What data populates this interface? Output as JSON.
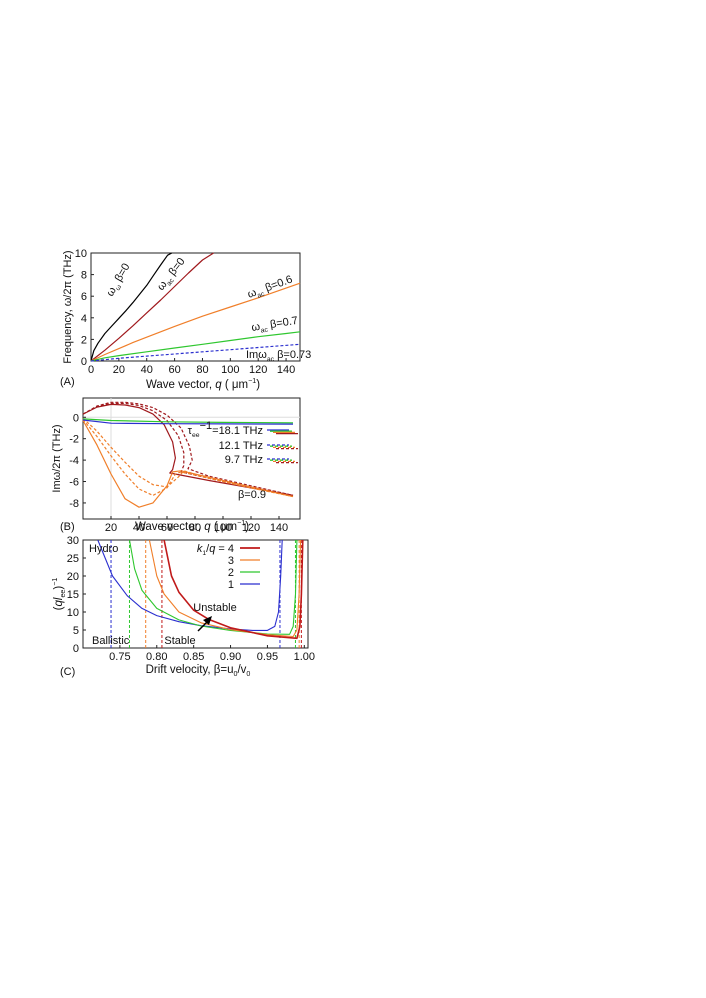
{
  "chart_data": [
    {
      "panel": "(A)",
      "type": "line",
      "xlabel": "Wave vector, q (μm⁻¹)",
      "ylabel": "Frequency, ω/2π (THz)",
      "xlim": [
        0,
        150
      ],
      "ylim": [
        0,
        10
      ],
      "xticks": [
        0,
        20,
        40,
        60,
        80,
        100,
        120,
        140
      ],
      "yticks": [
        0,
        2,
        4,
        6,
        8,
        10
      ],
      "series": [
        {
          "label": "ω_ω β=0",
          "color": "#000000",
          "dash": false,
          "x": [
            0,
            2,
            5,
            10,
            15,
            20,
            25,
            30,
            35,
            40,
            45,
            50,
            55,
            58
          ],
          "y": [
            0,
            0.95,
            1.65,
            2.55,
            3.25,
            3.95,
            4.65,
            5.4,
            6.2,
            7.0,
            7.95,
            8.9,
            9.8,
            10
          ]
        },
        {
          "label": "ω_ac β=0",
          "color": "#a0191d",
          "dash": false,
          "x": [
            0,
            10,
            20,
            30,
            40,
            50,
            60,
            70,
            80,
            88
          ],
          "y": [
            0,
            1.0,
            2.1,
            3.25,
            4.45,
            5.65,
            6.9,
            8.15,
            9.35,
            10
          ]
        },
        {
          "label": "ω_ac β=0.6",
          "color": "#f07f2a",
          "dash": false,
          "x": [
            0,
            10,
            20,
            30,
            40,
            60,
            80,
            100,
            120,
            140,
            150
          ],
          "y": [
            0,
            0.6,
            1.15,
            1.7,
            2.2,
            3.2,
            4.15,
            5.0,
            5.85,
            6.75,
            7.2
          ]
        },
        {
          "label": "ω_ac β=0.7",
          "color": "#2fc72f",
          "dash": false,
          "x": [
            0,
            10,
            20,
            40,
            60,
            80,
            100,
            120,
            140,
            150
          ],
          "y": [
            0,
            0.3,
            0.5,
            0.85,
            1.2,
            1.55,
            1.9,
            2.25,
            2.55,
            2.7
          ]
        },
        {
          "label": "Imω_ac β=0.73",
          "color": "#2b2fcf",
          "dash": true,
          "x": [
            0,
            20,
            40,
            60,
            80,
            100,
            120,
            150
          ],
          "y": [
            0,
            0.25,
            0.45,
            0.65,
            0.85,
            1.05,
            1.25,
            1.55
          ]
        }
      ],
      "annotations": [
        "ω_ω β=0",
        "ω_ac β=0",
        "ω_ac β=0.6",
        "ω_ac β=0.7",
        "Imω_ac β=0.73"
      ]
    },
    {
      "panel": "(B)",
      "type": "line",
      "xlabel": "Wave vector, q (μm⁻¹)",
      "ylabel": "Imω/2π (THz)",
      "xlim": [
        0,
        155
      ],
      "ylim": [
        -9.5,
        1.8
      ],
      "xticks": [
        20,
        40,
        60,
        80,
        100,
        120,
        140
      ],
      "yticks": [
        0,
        -2,
        -4,
        -6,
        -8
      ],
      "legend": [
        {
          "text": "τ_ee⁻¹=18.1 THz",
          "colors": [
            "#2b2fcf",
            "#2fc72f",
            "#f07f2a",
            "#a0191d"
          ],
          "dash": false
        },
        {
          "text": "12.1 THz",
          "colors": [
            "#2b2fcf",
            "#2fc72f",
            "#f07f2a",
            "#a0191d"
          ],
          "dash": true
        },
        {
          "text": "9.7 THz",
          "colors": [
            "#2b2fcf",
            "#2fc72f",
            "#f07f2a",
            "#a0191d"
          ],
          "dash": true
        }
      ],
      "annotation": "β=0.9",
      "series": [
        {
          "color": "#a0191d",
          "dash": false,
          "x": [
            0,
            10,
            20,
            30,
            40,
            50,
            58,
            64,
            66,
            64,
            62,
            70,
            90,
            120,
            150
          ],
          "y": [
            0.3,
            0.95,
            1.2,
            1.15,
            0.9,
            0.3,
            -0.7,
            -2.3,
            -3.8,
            -4.9,
            -5.2,
            -5.4,
            -5.9,
            -6.6,
            -7.3
          ]
        },
        {
          "color": "#a0191d",
          "dash": true,
          "x": [
            0,
            10,
            20,
            30,
            40,
            50,
            60,
            68,
            72,
            72,
            70,
            90,
            120,
            150
          ],
          "y": [
            0.3,
            1.0,
            1.3,
            1.3,
            1.1,
            0.6,
            -0.3,
            -1.7,
            -3.3,
            -4.5,
            -5.1,
            -5.7,
            -6.5,
            -7.3
          ]
        },
        {
          "color": "#a0191d",
          "dash": true,
          "x": [
            0,
            10,
            20,
            30,
            40,
            50,
            60,
            70,
            76,
            78,
            75,
            90,
            120,
            150
          ],
          "y": [
            0.3,
            1.05,
            1.4,
            1.4,
            1.25,
            0.9,
            0.2,
            -1.0,
            -2.7,
            -4.0,
            -4.8,
            -5.5,
            -6.4,
            -7.3
          ]
        },
        {
          "color": "#f07f2a",
          "dash": false,
          "x": [
            0,
            10,
            20,
            30,
            40,
            50,
            60,
            64,
            70,
            90,
            120,
            150
          ],
          "y": [
            -0.3,
            -2.6,
            -5.3,
            -7.6,
            -8.4,
            -8.0,
            -6.4,
            -5.1,
            -5.0,
            -5.6,
            -6.5,
            -7.4
          ]
        },
        {
          "color": "#f07f2a",
          "dash": true,
          "x": [
            0,
            10,
            20,
            30,
            40,
            50,
            60,
            66,
            70,
            90,
            120,
            150
          ],
          "y": [
            -0.2,
            -1.8,
            -3.6,
            -5.3,
            -6.7,
            -7.3,
            -6.6,
            -5.3,
            -5.1,
            -5.7,
            -6.6,
            -7.4
          ]
        },
        {
          "color": "#f07f2a",
          "dash": true,
          "x": [
            0,
            10,
            20,
            30,
            40,
            50,
            60,
            68,
            72,
            90,
            120,
            150
          ],
          "y": [
            -0.1,
            -1.3,
            -2.8,
            -4.2,
            -5.5,
            -6.3,
            -6.5,
            -5.6,
            -5.0,
            -5.7,
            -6.6,
            -7.4
          ]
        },
        {
          "color": "#2fc72f",
          "dash": false,
          "x": [
            0,
            20,
            60,
            100,
            150
          ],
          "y": [
            -0.15,
            -0.3,
            -0.42,
            -0.48,
            -0.52
          ]
        },
        {
          "color": "#2b2fcf",
          "dash": false,
          "x": [
            0,
            20,
            60,
            100,
            150
          ],
          "y": [
            -0.25,
            -0.55,
            -0.6,
            -0.62,
            -0.64
          ]
        }
      ]
    },
    {
      "panel": "(C)",
      "type": "line",
      "xlabel": "Drift velocity, β=u₀/v₀",
      "ylabel": "(ql_ee)⁻¹",
      "xlim": [
        0.7,
        1.005
      ],
      "ylim": [
        0,
        30
      ],
      "xticks": [
        0.75,
        0.8,
        0.85,
        0.9,
        0.95,
        1.0
      ],
      "xticklabels": [
        "0.75",
        "0.80",
        "0.85",
        "0.90",
        "0.95",
        "1.00"
      ],
      "yticks": [
        0,
        5,
        10,
        15,
        20,
        25,
        30
      ],
      "legend_title": "k₁/q = 4",
      "legend": [
        {
          "text": "4",
          "color": "#c01a1a"
        },
        {
          "text": "3",
          "color": "#f07f2a"
        },
        {
          "text": "2",
          "color": "#2fc72f"
        },
        {
          "text": "1",
          "color": "#2b2fcf"
        }
      ],
      "annotations": [
        "Hydro",
        "Ballistic",
        "Stable",
        "Unstable"
      ],
      "vlines": [
        {
          "x": 0.738,
          "color": "#2b2fcf"
        },
        {
          "x": 0.763,
          "color": "#2fc72f"
        },
        {
          "x": 0.785,
          "color": "#f07f2a"
        },
        {
          "x": 0.807,
          "color": "#c01a1a"
        },
        {
          "x": 0.967,
          "color": "#2b2fcf"
        },
        {
          "x": 0.988,
          "color": "#2fc72f"
        },
        {
          "x": 0.993,
          "color": "#f07f2a"
        },
        {
          "x": 0.996,
          "color": "#c01a1a"
        }
      ],
      "series": [
        {
          "name": "1",
          "color": "#2b2fcf",
          "width": 1.1,
          "x": [
            0.72,
            0.74,
            0.76,
            0.78,
            0.8,
            0.83,
            0.86,
            0.9,
            0.93,
            0.95,
            0.96,
            0.965,
            0.968,
            0.97
          ],
          "y": [
            30,
            20,
            14.5,
            11,
            9,
            7.3,
            6.2,
            5.3,
            4.9,
            4.9,
            6,
            10,
            20,
            30
          ]
        },
        {
          "name": "2",
          "color": "#2fc72f",
          "width": 1.1,
          "x": [
            0.763,
            0.77,
            0.78,
            0.8,
            0.83,
            0.86,
            0.9,
            0.95,
            0.98,
            0.985,
            0.988,
            0.99
          ],
          "y": [
            30,
            22,
            16,
            11,
            7.8,
            6.1,
            4.9,
            3.9,
            3.8,
            6,
            15,
            30
          ]
        },
        {
          "name": "3",
          "color": "#f07f2a",
          "width": 1.1,
          "x": [
            0.79,
            0.795,
            0.8,
            0.81,
            0.83,
            0.86,
            0.9,
            0.95,
            0.985,
            0.99,
            0.993,
            0.995
          ],
          "y": [
            30,
            25,
            20,
            15,
            10,
            7.0,
            5.1,
            3.7,
            3.2,
            5,
            15,
            30
          ]
        },
        {
          "name": "4",
          "color": "#c01a1a",
          "width": 1.6,
          "x": [
            0.81,
            0.815,
            0.82,
            0.83,
            0.85,
            0.87,
            0.9,
            0.95,
            0.99,
            0.994,
            0.996,
            0.998
          ],
          "y": [
            30,
            25,
            20,
            15.5,
            10.5,
            8.0,
            5.6,
            3.4,
            2.7,
            6,
            15,
            30
          ]
        }
      ]
    }
  ]
}
